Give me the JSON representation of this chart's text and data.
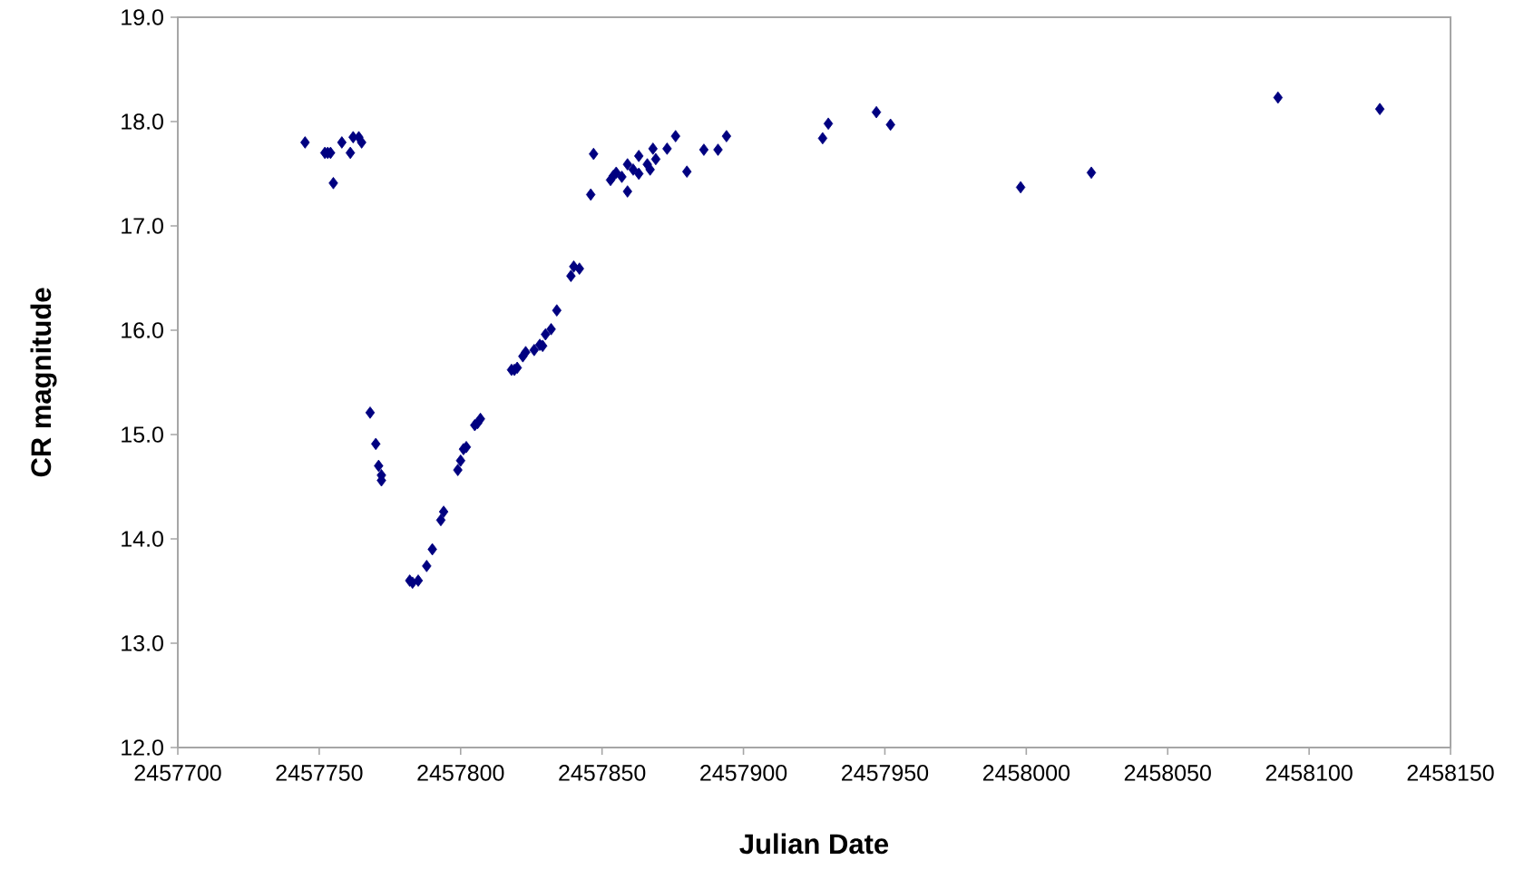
{
  "chart_data": {
    "type": "scatter",
    "xlabel": "Julian Date",
    "ylabel": "CR magnitude",
    "x": [
      2457745,
      2457752,
      2457753,
      2457754,
      2457755,
      2457758,
      2457761,
      2457762,
      2457764,
      2457765,
      2457768,
      2457770,
      2457771,
      2457772,
      2457772,
      2457782,
      2457783,
      2457785,
      2457788,
      2457790,
      2457793,
      2457794,
      2457799,
      2457800,
      2457801,
      2457802,
      2457805,
      2457806,
      2457807,
      2457818,
      2457819,
      2457820,
      2457822,
      2457823,
      2457826,
      2457828,
      2457829,
      2457830,
      2457832,
      2457834,
      2457839,
      2457840,
      2457842,
      2457846,
      2457847,
      2457853,
      2457854,
      2457855,
      2457857,
      2457859,
      2457859,
      2457861,
      2457863,
      2457863,
      2457866,
      2457867,
      2457868,
      2457869,
      2457873,
      2457876,
      2457880,
      2457886,
      2457891,
      2457894,
      2457928,
      2457930,
      2457947,
      2457952,
      2457998,
      2458023,
      2458089,
      2458125
    ],
    "values": [
      17.8,
      17.7,
      17.7,
      17.7,
      17.41,
      17.8,
      17.7,
      17.85,
      17.85,
      17.8,
      15.21,
      14.91,
      14.7,
      14.61,
      14.56,
      13.6,
      13.58,
      13.6,
      13.74,
      13.9,
      14.18,
      14.26,
      14.66,
      14.75,
      14.86,
      14.88,
      15.09,
      15.11,
      15.15,
      15.62,
      15.62,
      15.64,
      15.75,
      15.79,
      15.81,
      15.86,
      15.85,
      15.96,
      16.01,
      16.19,
      16.52,
      16.61,
      16.59,
      17.3,
      17.69,
      17.44,
      17.48,
      17.51,
      17.47,
      17.59,
      17.33,
      17.54,
      17.67,
      17.5,
      17.59,
      17.54,
      17.74,
      17.64,
      17.74,
      17.86,
      17.52,
      17.73,
      17.73,
      17.86,
      17.84,
      17.98,
      18.09,
      17.97,
      17.37,
      17.51,
      18.23,
      18.12
    ],
    "color": "#000080",
    "marker": "diamond",
    "xlim": [
      2457700,
      2458150
    ],
    "xticks": [
      2457700,
      2457750,
      2457800,
      2457850,
      2457900,
      2457950,
      2458000,
      2458050,
      2458100,
      2458150
    ],
    "ylim": [
      12,
      19
    ],
    "yticks": [
      {
        "value": 12,
        "label": "12.0"
      },
      {
        "value": 13,
        "label": "13.0"
      },
      {
        "value": 14,
        "label": "14.0"
      },
      {
        "value": 15,
        "label": "15.0"
      },
      {
        "value": 16,
        "label": "16.0"
      },
      {
        "value": 17,
        "label": "17.0"
      },
      {
        "value": 18,
        "label": "18.0"
      },
      {
        "value": 19,
        "label": "19.0"
      }
    ],
    "grid": false
  }
}
